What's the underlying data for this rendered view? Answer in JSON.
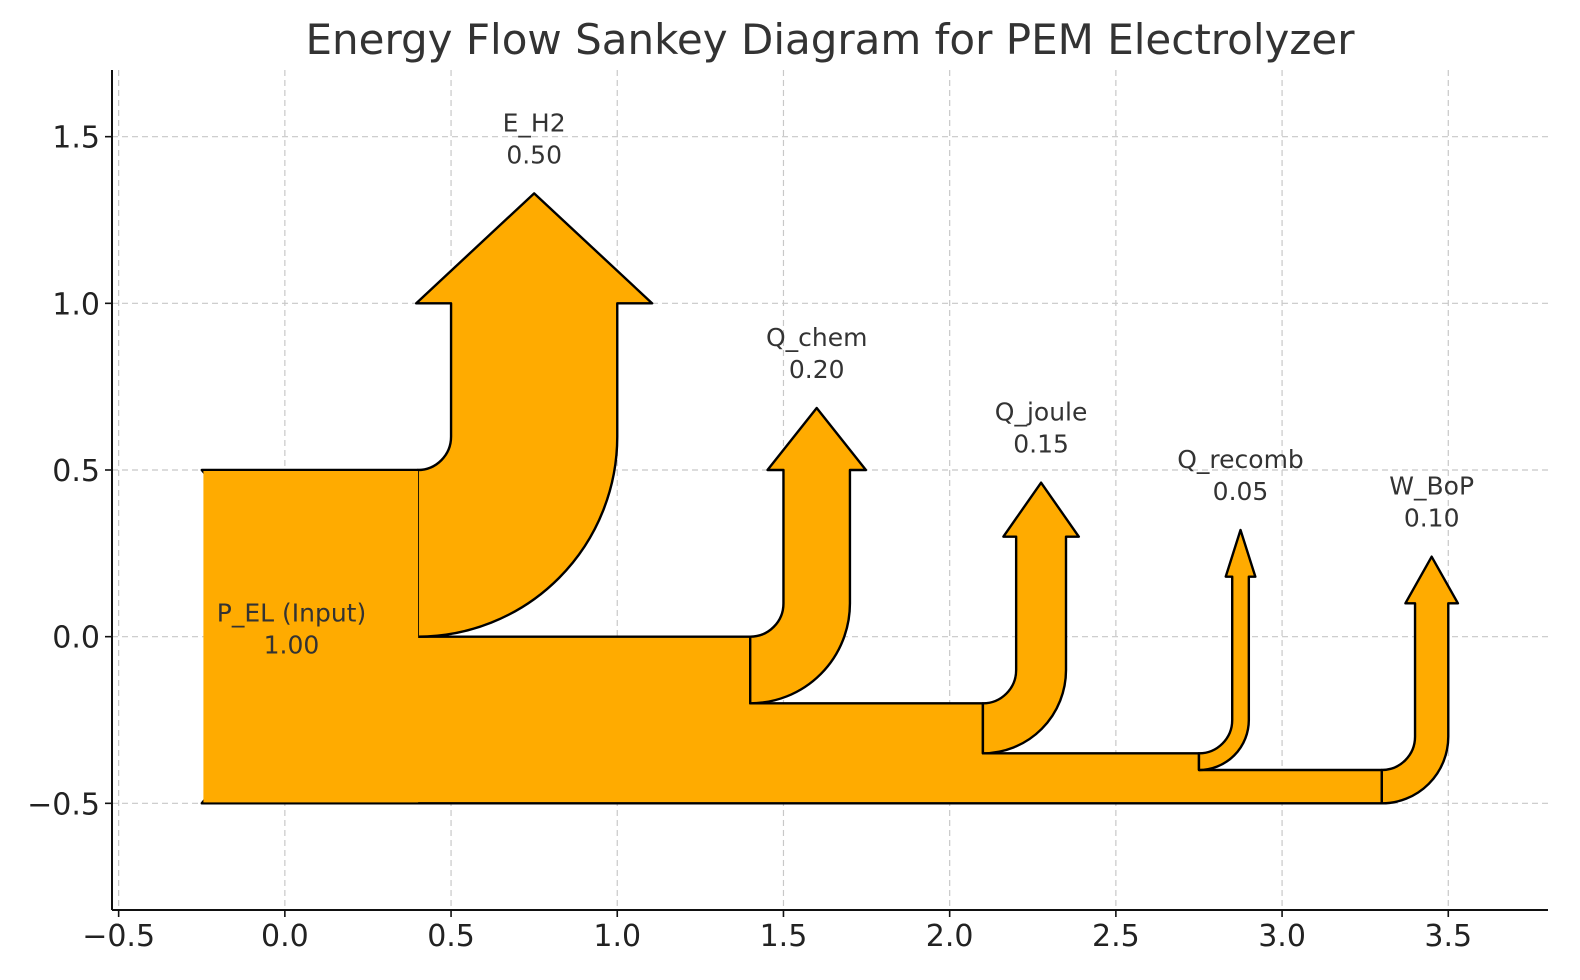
{
  "chart_data": {
    "type": "sankey",
    "title": "Energy Flow Sankey Diagram for PEM Electrolyzer",
    "xlim": [
      -0.52,
      3.8
    ],
    "ylim": [
      -0.82,
      1.7
    ],
    "x_ticks": [
      -0.5,
      0.0,
      0.5,
      1.0,
      1.5,
      2.0,
      2.5,
      3.0,
      3.5
    ],
    "x_tick_labels": [
      "−0.5",
      "0.0",
      "0.5",
      "1.0",
      "1.5",
      "2.0",
      "2.5",
      "3.0",
      "3.5"
    ],
    "y_ticks": [
      1.5,
      1.0,
      0.5,
      0.0,
      -0.5
    ],
    "y_tick_labels": [
      "1.5",
      "1.0",
      "0.5",
      "0.0",
      "−0.5"
    ],
    "grid": true,
    "fill_color": "#ffab00",
    "edge_color": "#000000",
    "input": {
      "name": "P_EL (Input)",
      "value": 1.0,
      "value_label": "1.00"
    },
    "outputs": [
      {
        "name": "E_H2",
        "value": 0.5,
        "value_label": "0.50"
      },
      {
        "name": "Q_chem",
        "value": 0.2,
        "value_label": "0.20"
      },
      {
        "name": "Q_joule",
        "value": 0.15,
        "value_label": "0.15"
      },
      {
        "name": "Q_recomb",
        "value": 0.05,
        "value_label": "0.05"
      },
      {
        "name": "W_BoP",
        "value": 0.1,
        "value_label": "0.10"
      }
    ]
  }
}
